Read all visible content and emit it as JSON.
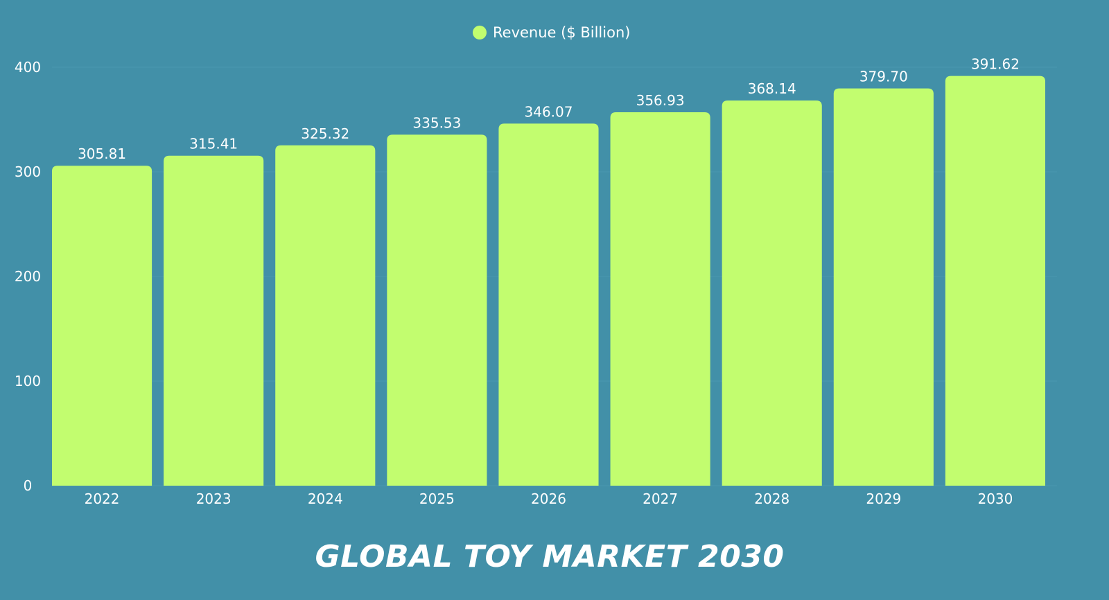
{
  "chart_data": {
    "type": "bar",
    "title": "GLOBAL TOY MARKET 2030",
    "categories": [
      "2022",
      "2023",
      "2024",
      "2025",
      "2026",
      "2027",
      "2028",
      "2029",
      "2030"
    ],
    "series": [
      {
        "name": "Revenue ($ Billion)",
        "values": [
          305.81,
          315.41,
          325.32,
          335.53,
          346.07,
          356.93,
          368.14,
          379.7,
          391.62
        ],
        "value_labels": [
          "305.81",
          "315.41",
          "325.32",
          "335.53",
          "346.07",
          "356.93",
          "368.14",
          "379.70",
          "391.62"
        ]
      }
    ],
    "ylim": [
      0,
      400
    ],
    "yticks": [
      0,
      100,
      200,
      300,
      400
    ],
    "xlabel": "",
    "ylabel": "",
    "legend_position": "top-center",
    "grid": false
  },
  "colors": {
    "background": "#4290a8",
    "bar": "#c2fd6f",
    "text": "#ffffff",
    "legend_dot": "#c2fd6f"
  }
}
